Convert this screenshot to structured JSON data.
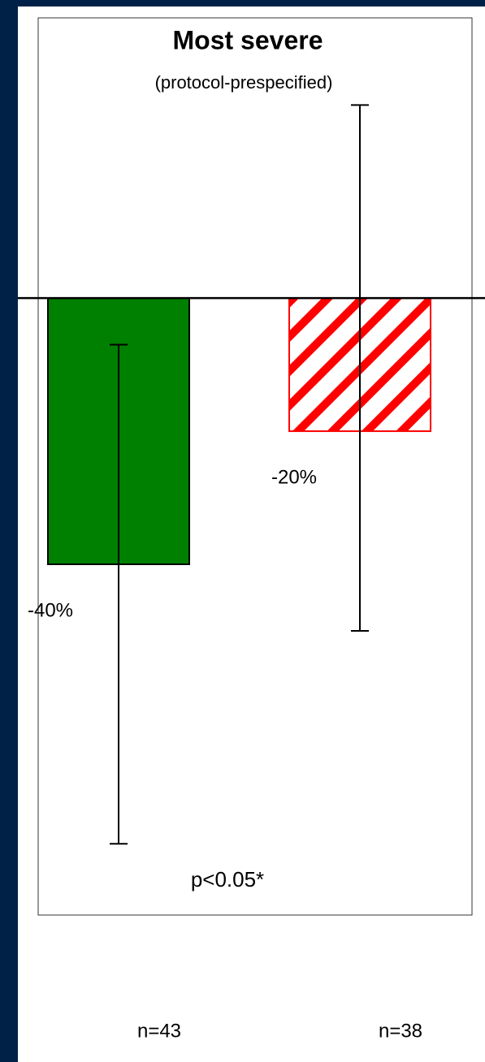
{
  "chart_data": {
    "type": "bar",
    "title": "Most severe",
    "subtitle": "(protocol-prespecified)",
    "categories": [
      "n=43",
      "n=38"
    ],
    "values": [
      -40,
      -20
    ],
    "value_labels": [
      "-40%",
      "-20%"
    ],
    "colors": [
      "#008000",
      "#ff0000"
    ],
    "patterns": [
      "solid",
      "hatch"
    ],
    "ci_low": [
      -82,
      -50
    ],
    "ci_high": [
      -7,
      29
    ],
    "ylim": [
      -92.7,
      42.1
    ],
    "annotation": "p<0.05*"
  }
}
